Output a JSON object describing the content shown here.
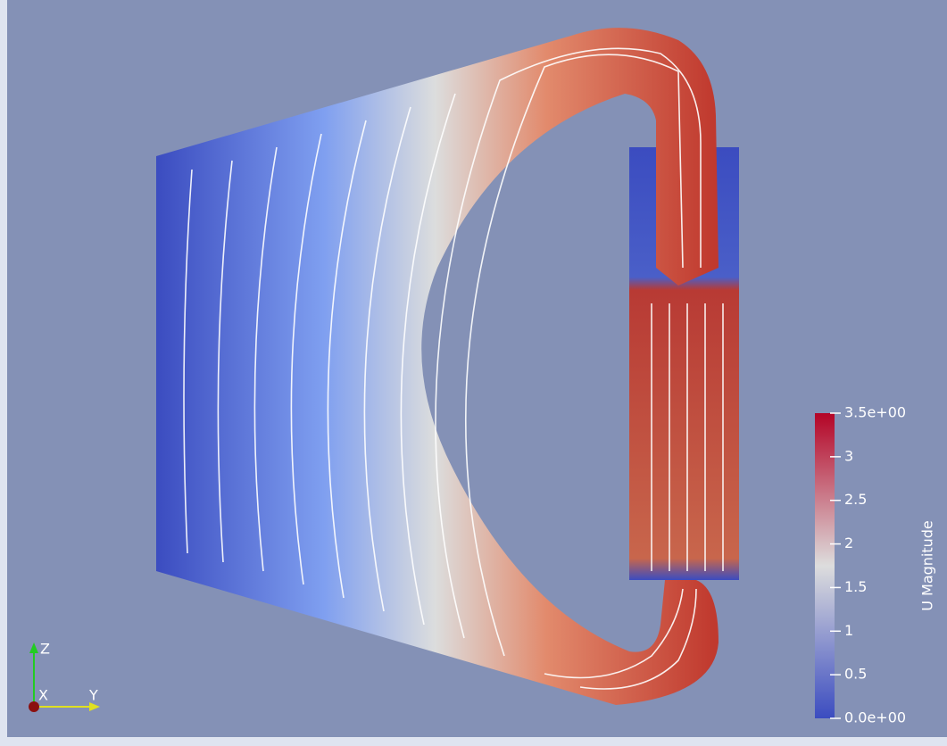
{
  "colorbar": {
    "title": "U Magnitude",
    "min": {
      "value": 0,
      "label": "0.0e+00"
    },
    "max": {
      "value": 3.5,
      "label": "3.5e+00"
    },
    "ticks": [
      0.5,
      1,
      1.5,
      2,
      2.5,
      3
    ]
  },
  "axes": {
    "z": "Z",
    "x": "X",
    "y": "Y"
  }
}
